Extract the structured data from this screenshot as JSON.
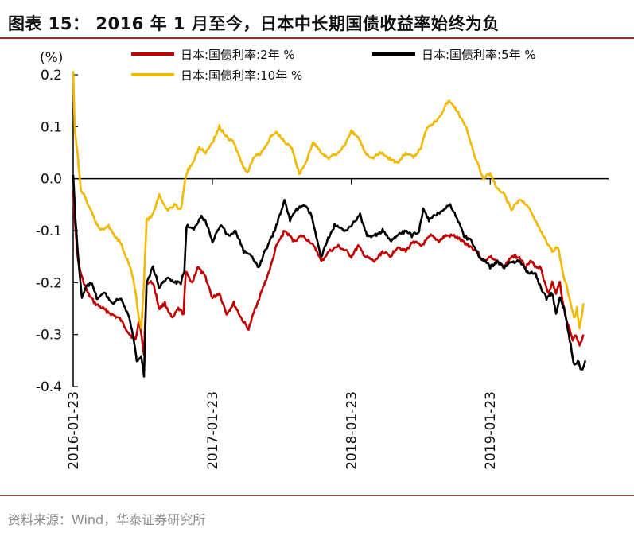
{
  "title": "图表 15：  2016 年 1 月至今，日本中长期国债收益率始终为负",
  "source": "资料来源：Wind，华泰证券研究所",
  "chart_data": {
    "type": "line",
    "ylabel": "(%)",
    "ylim": [
      -0.4,
      0.2
    ],
    "yticks": [
      0.2,
      0.1,
      0.0,
      -0.1,
      -0.2,
      -0.3,
      -0.4
    ],
    "ytick_labels": [
      "0.2",
      "0.1",
      "0.0",
      "-0.1",
      "-0.2",
      "-0.3",
      "-0.4"
    ],
    "xlim": [
      "2016-01-23",
      "2019-11-30"
    ],
    "xticks": [
      "2016-01-23",
      "2017-01-23",
      "2018-01-23",
      "2019-01-23"
    ],
    "grid": false,
    "legend_position": "top",
    "series": [
      {
        "name": "日本:国债利率:2年 %",
        "color": "#c00000",
        "points": [
          [
            "2016-01-23",
            -0.02
          ],
          [
            "2016-01-29",
            -0.1
          ],
          [
            "2016-02-05",
            -0.16
          ],
          [
            "2016-02-15",
            -0.19
          ],
          [
            "2016-03-01",
            -0.22
          ],
          [
            "2016-03-20",
            -0.24
          ],
          [
            "2016-04-10",
            -0.25
          ],
          [
            "2016-05-01",
            -0.26
          ],
          [
            "2016-05-25",
            -0.27
          ],
          [
            "2016-06-20",
            -0.3
          ],
          [
            "2016-07-05",
            -0.31
          ],
          [
            "2016-07-15",
            -0.27
          ],
          [
            "2016-07-27",
            -0.34
          ],
          [
            "2016-08-03",
            -0.2
          ],
          [
            "2016-08-20",
            -0.2
          ],
          [
            "2016-09-05",
            -0.25
          ],
          [
            "2016-09-20",
            -0.24
          ],
          [
            "2016-10-10",
            -0.27
          ],
          [
            "2016-10-25",
            -0.25
          ],
          [
            "2016-11-08",
            -0.26
          ],
          [
            "2016-11-14",
            -0.18
          ],
          [
            "2016-12-01",
            -0.2
          ],
          [
            "2016-12-15",
            -0.17
          ],
          [
            "2017-01-05",
            -0.19
          ],
          [
            "2017-01-23",
            -0.23
          ],
          [
            "2017-02-10",
            -0.22
          ],
          [
            "2017-03-01",
            -0.26
          ],
          [
            "2017-03-20",
            -0.24
          ],
          [
            "2017-04-10",
            -0.27
          ],
          [
            "2017-04-28",
            -0.29
          ],
          [
            "2017-05-15",
            -0.25
          ],
          [
            "2017-06-05",
            -0.21
          ],
          [
            "2017-06-25",
            -0.17
          ],
          [
            "2017-07-10",
            -0.13
          ],
          [
            "2017-08-01",
            -0.1
          ],
          [
            "2017-08-25",
            -0.12
          ],
          [
            "2017-09-15",
            -0.11
          ],
          [
            "2017-10-05",
            -0.12
          ],
          [
            "2017-10-25",
            -0.14
          ],
          [
            "2017-11-05",
            -0.16
          ],
          [
            "2017-11-25",
            -0.14
          ],
          [
            "2017-12-20",
            -0.13
          ],
          [
            "2018-01-10",
            -0.14
          ],
          [
            "2018-01-23",
            -0.15
          ],
          [
            "2018-02-10",
            -0.13
          ],
          [
            "2018-03-01",
            -0.15
          ],
          [
            "2018-03-25",
            -0.16
          ],
          [
            "2018-04-15",
            -0.14
          ],
          [
            "2018-05-05",
            -0.15
          ],
          [
            "2018-05-25",
            -0.13
          ],
          [
            "2018-06-15",
            -0.14
          ],
          [
            "2018-07-05",
            -0.12
          ],
          [
            "2018-07-25",
            -0.13
          ],
          [
            "2018-08-20",
            -0.11
          ],
          [
            "2018-09-10",
            -0.12
          ],
          [
            "2018-09-28",
            -0.11
          ],
          [
            "2018-10-20",
            -0.11
          ],
          [
            "2018-11-10",
            -0.12
          ],
          [
            "2018-12-01",
            -0.13
          ],
          [
            "2018-12-20",
            -0.14
          ],
          [
            "2019-01-05",
            -0.16
          ],
          [
            "2019-01-23",
            -0.15
          ],
          [
            "2019-02-10",
            -0.16
          ],
          [
            "2019-03-01",
            -0.17
          ],
          [
            "2019-03-20",
            -0.15
          ],
          [
            "2019-04-10",
            -0.15
          ],
          [
            "2019-04-25",
            -0.17
          ],
          [
            "2019-05-10",
            -0.16
          ],
          [
            "2019-05-25",
            -0.17
          ],
          [
            "2019-06-05",
            -0.17
          ],
          [
            "2019-06-15",
            -0.2
          ],
          [
            "2019-06-25",
            -0.22
          ],
          [
            "2019-07-05",
            -0.2
          ],
          [
            "2019-07-15",
            -0.22
          ],
          [
            "2019-07-25",
            -0.2
          ],
          [
            "2019-08-05",
            -0.25
          ],
          [
            "2019-08-15",
            -0.28
          ],
          [
            "2019-08-28",
            -0.31
          ],
          [
            "2019-09-05",
            -0.3
          ],
          [
            "2019-09-15",
            -0.32
          ],
          [
            "2019-09-25",
            -0.3
          ]
        ]
      },
      {
        "name": "日本:国债利率:5年 %",
        "color": "#000000",
        "points": [
          [
            "2016-01-23",
            0.01
          ],
          [
            "2016-01-29",
            -0.08
          ],
          [
            "2016-02-05",
            -0.15
          ],
          [
            "2016-02-15",
            -0.23
          ],
          [
            "2016-02-25",
            -0.21
          ],
          [
            "2016-03-10",
            -0.2
          ],
          [
            "2016-03-25",
            -0.23
          ],
          [
            "2016-04-15",
            -0.22
          ],
          [
            "2016-05-05",
            -0.24
          ],
          [
            "2016-05-25",
            -0.23
          ],
          [
            "2016-06-15",
            -0.26
          ],
          [
            "2016-06-28",
            -0.3
          ],
          [
            "2016-07-08",
            -0.35
          ],
          [
            "2016-07-20",
            -0.34
          ],
          [
            "2016-07-27",
            -0.38
          ],
          [
            "2016-08-03",
            -0.2
          ],
          [
            "2016-08-20",
            -0.17
          ],
          [
            "2016-09-05",
            -0.21
          ],
          [
            "2016-09-25",
            -0.19
          ],
          [
            "2016-10-15",
            -0.2
          ],
          [
            "2016-11-01",
            -0.2
          ],
          [
            "2016-11-10",
            -0.18
          ],
          [
            "2016-11-16",
            -0.09
          ],
          [
            "2016-12-05",
            -0.1
          ],
          [
            "2016-12-25",
            -0.07
          ],
          [
            "2017-01-10",
            -0.09
          ],
          [
            "2017-01-23",
            -0.12
          ],
          [
            "2017-02-15",
            -0.09
          ],
          [
            "2017-03-05",
            -0.11
          ],
          [
            "2017-03-25",
            -0.1
          ],
          [
            "2017-04-15",
            -0.14
          ],
          [
            "2017-05-05",
            -0.15
          ],
          [
            "2017-05-25",
            -0.17
          ],
          [
            "2017-06-10",
            -0.14
          ],
          [
            "2017-06-30",
            -0.11
          ],
          [
            "2017-07-15",
            -0.08
          ],
          [
            "2017-07-31",
            -0.04
          ],
          [
            "2017-08-15",
            -0.08
          ],
          [
            "2017-09-01",
            -0.06
          ],
          [
            "2017-09-20",
            -0.05
          ],
          [
            "2017-10-10",
            -0.07
          ],
          [
            "2017-10-25",
            -0.12
          ],
          [
            "2017-11-05",
            -0.15
          ],
          [
            "2017-11-20",
            -0.12
          ],
          [
            "2017-12-10",
            -0.09
          ],
          [
            "2018-01-05",
            -0.1
          ],
          [
            "2018-01-23",
            -0.09
          ],
          [
            "2018-02-15",
            -0.07
          ],
          [
            "2018-03-05",
            -0.11
          ],
          [
            "2018-03-25",
            -0.11
          ],
          [
            "2018-04-15",
            -0.1
          ],
          [
            "2018-05-05",
            -0.12
          ],
          [
            "2018-05-25",
            -0.11
          ],
          [
            "2018-06-15",
            -0.1
          ],
          [
            "2018-07-01",
            -0.11
          ],
          [
            "2018-07-20",
            -0.1
          ],
          [
            "2018-07-31",
            -0.06
          ],
          [
            "2018-08-15",
            -0.08
          ],
          [
            "2018-09-01",
            -0.07
          ],
          [
            "2018-09-20",
            -0.06
          ],
          [
            "2018-10-10",
            -0.05
          ],
          [
            "2018-10-30",
            -0.08
          ],
          [
            "2018-11-15",
            -0.11
          ],
          [
            "2018-12-05",
            -0.12
          ],
          [
            "2018-12-25",
            -0.15
          ],
          [
            "2019-01-10",
            -0.16
          ],
          [
            "2019-01-23",
            -0.17
          ],
          [
            "2019-02-10",
            -0.16
          ],
          [
            "2019-03-01",
            -0.17
          ],
          [
            "2019-03-20",
            -0.16
          ],
          [
            "2019-04-10",
            -0.16
          ],
          [
            "2019-05-01",
            -0.18
          ],
          [
            "2019-05-20",
            -0.18
          ],
          [
            "2019-06-05",
            -0.21
          ],
          [
            "2019-06-20",
            -0.23
          ],
          [
            "2019-07-05",
            -0.22
          ],
          [
            "2019-07-15",
            -0.26
          ],
          [
            "2019-07-25",
            -0.23
          ],
          [
            "2019-08-05",
            -0.25
          ],
          [
            "2019-08-15",
            -0.29
          ],
          [
            "2019-08-25",
            -0.33
          ],
          [
            "2019-09-01",
            -0.36
          ],
          [
            "2019-09-10",
            -0.35
          ],
          [
            "2019-09-20",
            -0.37
          ],
          [
            "2019-09-30",
            -0.35
          ]
        ]
      },
      {
        "name": "日本:国债利率:10年 %",
        "color": "#f2b800",
        "points": [
          [
            "2016-01-23",
            0.21
          ],
          [
            "2016-01-27",
            0.1
          ],
          [
            "2016-02-03",
            0.05
          ],
          [
            "2016-02-12",
            -0.02
          ],
          [
            "2016-02-25",
            -0.04
          ],
          [
            "2016-03-10",
            -0.06
          ],
          [
            "2016-03-25",
            -0.09
          ],
          [
            "2016-04-10",
            -0.1
          ],
          [
            "2016-04-25",
            -0.09
          ],
          [
            "2016-05-10",
            -0.11
          ],
          [
            "2016-05-25",
            -0.12
          ],
          [
            "2016-06-10",
            -0.15
          ],
          [
            "2016-06-25",
            -0.18
          ],
          [
            "2016-07-05",
            -0.22
          ],
          [
            "2016-07-12",
            -0.26
          ],
          [
            "2016-07-20",
            -0.29
          ],
          [
            "2016-07-27",
            -0.2
          ],
          [
            "2016-08-03",
            -0.08
          ],
          [
            "2016-08-20",
            -0.07
          ],
          [
            "2016-09-05",
            -0.03
          ],
          [
            "2016-09-25",
            -0.06
          ],
          [
            "2016-10-15",
            -0.05
          ],
          [
            "2016-11-01",
            -0.06
          ],
          [
            "2016-11-15",
            0.01
          ],
          [
            "2016-12-01",
            0.03
          ],
          [
            "2016-12-20",
            0.06
          ],
          [
            "2017-01-05",
            0.05
          ],
          [
            "2017-01-23",
            0.07
          ],
          [
            "2017-02-10",
            0.1
          ],
          [
            "2017-03-01",
            0.08
          ],
          [
            "2017-03-20",
            0.07
          ],
          [
            "2017-04-10",
            0.03
          ],
          [
            "2017-04-25",
            0.01
          ],
          [
            "2017-05-10",
            0.04
          ],
          [
            "2017-06-01",
            0.05
          ],
          [
            "2017-06-25",
            0.08
          ],
          [
            "2017-07-10",
            0.09
          ],
          [
            "2017-08-01",
            0.07
          ],
          [
            "2017-08-20",
            0.06
          ],
          [
            "2017-09-08",
            0.01
          ],
          [
            "2017-09-25",
            0.03
          ],
          [
            "2017-10-15",
            0.07
          ],
          [
            "2017-11-05",
            0.05
          ],
          [
            "2017-11-25",
            0.04
          ],
          [
            "2017-12-20",
            0.05
          ],
          [
            "2018-01-10",
            0.07
          ],
          [
            "2018-01-23",
            0.09
          ],
          [
            "2018-02-10",
            0.08
          ],
          [
            "2018-03-01",
            0.05
          ],
          [
            "2018-03-20",
            0.04
          ],
          [
            "2018-04-10",
            0.05
          ],
          [
            "2018-05-01",
            0.04
          ],
          [
            "2018-05-25",
            0.03
          ],
          [
            "2018-06-15",
            0.05
          ],
          [
            "2018-07-05",
            0.04
          ],
          [
            "2018-07-25",
            0.06
          ],
          [
            "2018-08-10",
            0.1
          ],
          [
            "2018-09-01",
            0.11
          ],
          [
            "2018-09-20",
            0.13
          ],
          [
            "2018-10-05",
            0.15
          ],
          [
            "2018-10-20",
            0.14
          ],
          [
            "2018-11-05",
            0.12
          ],
          [
            "2018-11-25",
            0.09
          ],
          [
            "2018-12-15",
            0.04
          ],
          [
            "2019-01-05",
            0.0
          ],
          [
            "2019-01-23",
            0.01
          ],
          [
            "2019-02-10",
            -0.02
          ],
          [
            "2019-03-01",
            -0.03
          ],
          [
            "2019-03-20",
            -0.06
          ],
          [
            "2019-04-10",
            -0.04
          ],
          [
            "2019-05-01",
            -0.05
          ],
          [
            "2019-05-20",
            -0.08
          ],
          [
            "2019-06-05",
            -0.1
          ],
          [
            "2019-06-20",
            -0.12
          ],
          [
            "2019-07-05",
            -0.14
          ],
          [
            "2019-07-20",
            -0.13
          ],
          [
            "2019-08-05",
            -0.19
          ],
          [
            "2019-08-20",
            -0.23
          ],
          [
            "2019-08-31",
            -0.27
          ],
          [
            "2019-09-08",
            -0.25
          ],
          [
            "2019-09-15",
            -0.29
          ],
          [
            "2019-09-25",
            -0.24
          ]
        ]
      }
    ]
  }
}
